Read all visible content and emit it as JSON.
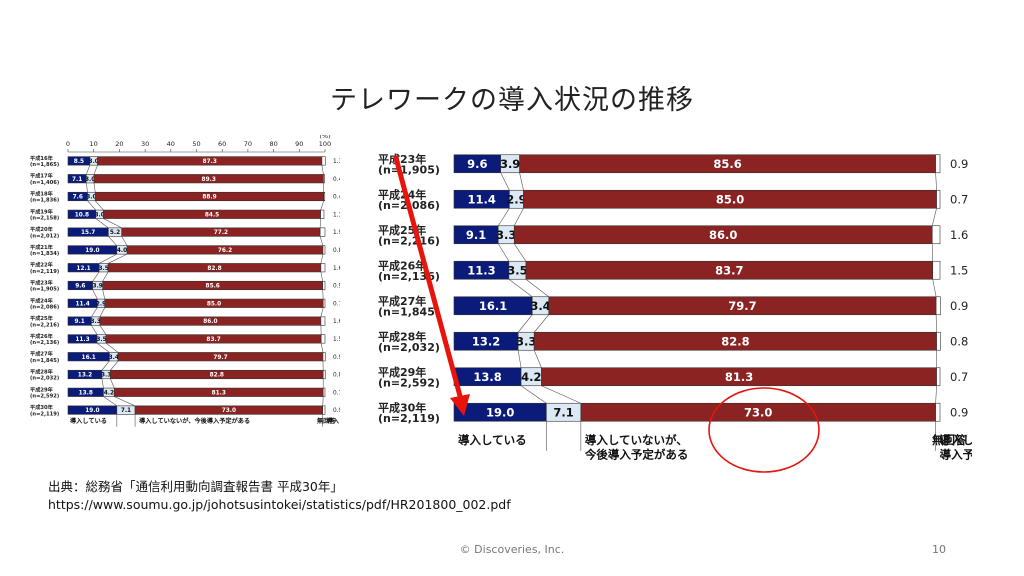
{
  "slide": {
    "title": "テレワークの導入状況の推移",
    "source_line1": "出典：総務省「通信利用動向調査報告書 平成30年」",
    "source_line2": "https://www.soumu.go.jp/johotsusintokei/statistics/pdf/HR201800_002.pdf",
    "footer": "© Discoveries, Inc.",
    "page_number": "10"
  },
  "colors": {
    "introduced": "#0b1b7a",
    "planned": "#dce9f5",
    "not_planned": "#8b2323",
    "no_answer": "#ffffff",
    "arrow": "#e8140c",
    "circle": "#e8140c"
  },
  "chart_data": [
    {
      "type": "bar",
      "orientation": "horizontal",
      "stacked": true,
      "unit": "(%)",
      "xlim": [
        0,
        100
      ],
      "x_ticks": [
        "0",
        "10",
        "20",
        "30",
        "40",
        "50",
        "60",
        "70",
        "80",
        "90",
        "100"
      ],
      "categories": [
        "平成16年",
        "平成17年",
        "平成18年",
        "平成19年",
        "平成20年",
        "平成21年",
        "平成22年",
        "平成23年",
        "平成24年",
        "平成25年",
        "平成26年",
        "平成27年",
        "平成28年",
        "平成29年",
        "平成30年"
      ],
      "sample_sizes": [
        "(n=1,865)",
        "(n=1,406)",
        "(n=1,836)",
        "(n=2,158)",
        "(n=2,012)",
        "(n=1,834)",
        "(n=2,119)",
        "(n=1,905)",
        "(n=2,086)",
        "(n=2,216)",
        "(n=2,136)",
        "(n=1,845)",
        "(n=2,032)",
        "(n=2,592)",
        "(n=2,119)"
      ],
      "series": [
        {
          "name": "導入している",
          "values": [
            8.5,
            7.1,
            7.6,
            10.8,
            15.7,
            19.0,
            12.1,
            9.6,
            11.4,
            9.1,
            11.3,
            16.1,
            13.2,
            13.8,
            19.0
          ]
        },
        {
          "name": "導入していないが、今後導入予定がある",
          "values": [
            3.0,
            3.0,
            3.0,
            3.0,
            5.2,
            4.0,
            3.5,
            3.9,
            2.9,
            3.3,
            3.5,
            3.4,
            3.3,
            4.2,
            7.1
          ]
        },
        {
          "name": "導入していないし、具体的な導入予定もない",
          "values": [
            87.3,
            89.3,
            88.9,
            84.5,
            77.2,
            76.2,
            82.8,
            85.6,
            85.0,
            86.0,
            83.7,
            79.7,
            82.8,
            81.3,
            73.0
          ]
        },
        {
          "name": "無回答",
          "values": [
            1.3,
            0.4,
            0.4,
            1.3,
            1.9,
            0.8,
            1.6,
            0.9,
            0.7,
            1.6,
            1.5,
            0.9,
            0.8,
            0.7,
            0.9
          ]
        }
      ]
    },
    {
      "type": "bar",
      "orientation": "horizontal",
      "stacked": true,
      "xlim": [
        0,
        100
      ],
      "categories": [
        "平成23年",
        "平成24年",
        "平成25年",
        "平成26年",
        "平成27年",
        "平成28年",
        "平成29年",
        "平成30年"
      ],
      "sample_sizes": [
        "(n=1,905)",
        "(n=2,086)",
        "(n=2,216)",
        "(n=2,136)",
        "(n=1,845)",
        "(n=2,032)",
        "(n=2,592)",
        "(n=2,119)"
      ],
      "series": [
        {
          "name": "導入している",
          "values": [
            9.6,
            11.4,
            9.1,
            11.3,
            16.1,
            13.2,
            13.8,
            19.0
          ]
        },
        {
          "name": "導入していないが、今後導入予定がある",
          "values": [
            3.9,
            2.9,
            3.3,
            3.5,
            3.4,
            3.3,
            4.2,
            7.1
          ]
        },
        {
          "name": "導入していないし、具体的な導入予定もない",
          "values": [
            85.6,
            85.0,
            86.0,
            83.7,
            79.7,
            82.8,
            81.3,
            73.0
          ]
        },
        {
          "name": "無回答",
          "values": [
            0.9,
            0.7,
            1.6,
            1.5,
            0.9,
            0.8,
            0.7,
            0.9
          ]
        }
      ],
      "legend_labels": [
        [
          "導入している"
        ],
        [
          "導入していないが、",
          "今後導入予定がある"
        ],
        [
          "導入していないし、具体的な",
          "導入予定もない"
        ],
        [
          "無回答"
        ]
      ]
    }
  ]
}
